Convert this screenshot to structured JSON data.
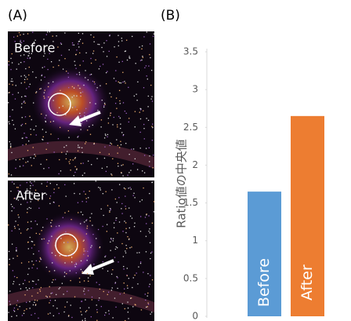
{
  "panel_labels": [
    "(A)",
    "(B)"
  ],
  "images": [
    {
      "label": "Before"
    },
    {
      "label": "After"
    }
  ],
  "chart_data": {
    "type": "bar",
    "categories": [
      "Before",
      "After"
    ],
    "values": [
      1.65,
      2.65
    ],
    "colors": [
      "#5b9bd5",
      "#ed7d31"
    ],
    "y_label": "Ratio値の中央値",
    "ylim": [
      0,
      3.5
    ],
    "yticks": [
      0,
      0.5,
      1,
      1.5,
      2,
      2.5,
      3,
      3.5
    ]
  }
}
